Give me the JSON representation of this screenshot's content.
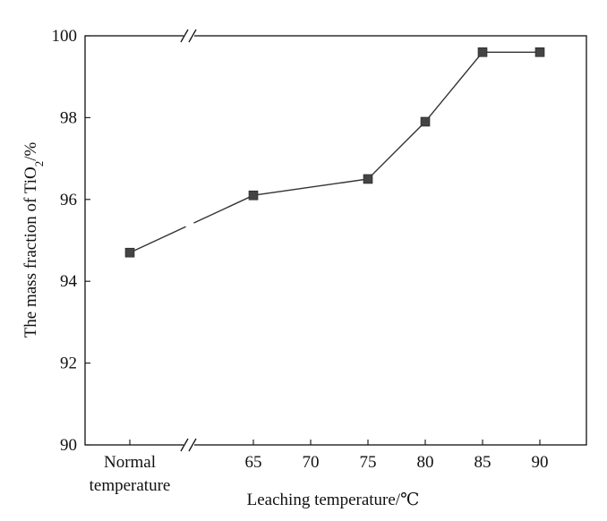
{
  "chart_data": {
    "type": "line",
    "xlabel": "Leaching temperature/℃",
    "ylabel": "The mass fraction of TiO",
    "ylabel_subscript": "2",
    "ylabel_suffix": "/%",
    "categories": [
      "Normal temperature",
      "65",
      "70",
      "75",
      "80",
      "85",
      "90"
    ],
    "x_tick_labels": [
      {
        "lines": [
          "Normal",
          "temperature"
        ]
      },
      {
        "lines": [
          "65"
        ]
      },
      {
        "lines": [
          "70"
        ]
      },
      {
        "lines": [
          "75"
        ]
      },
      {
        "lines": [
          "80"
        ]
      },
      {
        "lines": [
          "85"
        ]
      },
      {
        "lines": [
          "90"
        ]
      }
    ],
    "y_ticks": [
      90,
      92,
      94,
      96,
      98,
      100
    ],
    "ylim": [
      90,
      100
    ],
    "x_axis_break": true,
    "series": [
      {
        "points": [
          {
            "x": "Normal temperature",
            "y": 94.7
          },
          {
            "x": "65",
            "y": 96.1
          },
          {
            "x": "75",
            "y": 96.5
          },
          {
            "x": "80",
            "y": 97.9
          },
          {
            "x": "85",
            "y": 99.6
          },
          {
            "x": "90",
            "y": 99.6
          }
        ]
      }
    ],
    "colors": {
      "line": "#333333",
      "marker": "#444444",
      "axis": "#111111"
    },
    "marker": "square",
    "grid": false,
    "legend": "none"
  }
}
